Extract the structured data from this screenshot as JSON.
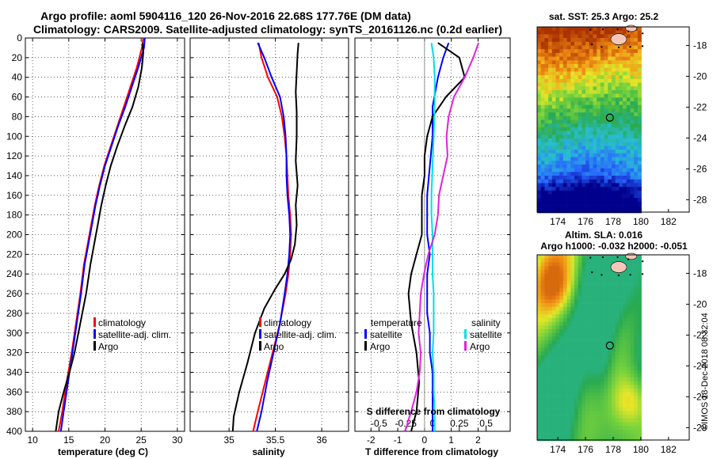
{
  "title_line1": "Argo profile: aoml 5904116_120 26-Nov-2016 22.68S 177.76E (DM data)",
  "title_line2": "Climatology: CARS2009. Satellite-adjusted climatology: synTS_20161126.nc (0.2d earlier)",
  "timestamp": "©IMOS 13-Dec-2018 08:32:04",
  "colors": {
    "clim": "#ff0000",
    "sat": "#0000ff",
    "argo": "#000000",
    "sat_s": "#00e0e0",
    "argo_s": "#e020e0"
  },
  "chart_data": [
    {
      "type": "line",
      "name": "temperature",
      "xlabel": "temperature (deg C)",
      "xlim": [
        9,
        31
      ],
      "ylim": [
        400,
        0
      ],
      "xticks": [
        10,
        15,
        20,
        25,
        30
      ],
      "yticks": [
        0,
        20,
        40,
        60,
        80,
        100,
        120,
        140,
        160,
        180,
        200,
        220,
        240,
        260,
        280,
        300,
        320,
        340,
        360,
        380,
        400
      ],
      "legend": [
        "climatology",
        "satellite-adj. clim.",
        "Argo"
      ],
      "series": [
        {
          "name": "climatology",
          "color": "clim",
          "x": [
            25.3,
            25.1,
            24.4,
            23.5,
            22.6,
            21.7,
            20.8,
            19.9,
            19.2,
            18.6,
            18.1,
            17.6,
            17.1,
            16.6,
            16.0,
            15.4,
            14.7,
            14.1,
            13.6
          ],
          "y": [
            0,
            10,
            30,
            50,
            70,
            90,
            110,
            130,
            150,
            170,
            190,
            210,
            230,
            260,
            290,
            320,
            350,
            380,
            400
          ]
        },
        {
          "name": "satellite-adj. clim.",
          "color": "sat",
          "x": [
            25.5,
            25.4,
            24.6,
            23.7,
            22.8,
            21.8,
            20.9,
            20.0,
            19.3,
            18.7,
            18.2,
            17.7,
            17.2,
            16.7,
            16.1,
            15.5,
            14.9,
            14.3,
            13.9
          ],
          "y": [
            0,
            10,
            30,
            50,
            70,
            90,
            110,
            130,
            150,
            170,
            190,
            210,
            230,
            260,
            290,
            320,
            350,
            380,
            400
          ]
        },
        {
          "name": "Argo",
          "color": "argo",
          "x": [
            25.2,
            25.3,
            25.1,
            24.6,
            23.8,
            22.7,
            21.7,
            20.8,
            20.1,
            19.5,
            19.0,
            18.5,
            18.0,
            17.4,
            16.6,
            15.8,
            15.1,
            14.3,
            13.6,
            13.2
          ],
          "y": [
            5,
            15,
            30,
            50,
            70,
            90,
            110,
            130,
            150,
            170,
            190,
            210,
            230,
            260,
            290,
            320,
            340,
            360,
            380,
            400
          ]
        }
      ]
    },
    {
      "type": "line",
      "name": "salinity",
      "xlabel": "salinity",
      "xlim": [
        34.58,
        36.29
      ],
      "ylim": [
        400,
        0
      ],
      "xticks": [
        35,
        35.5,
        36
      ],
      "legend": [
        "climatology",
        "satellite-adj. clim.",
        "Argo"
      ],
      "series": [
        {
          "name": "climatology",
          "color": "clim",
          "x": [
            35.32,
            35.35,
            35.42,
            35.52,
            35.57,
            35.6,
            35.62,
            35.63,
            35.64,
            35.66,
            35.67,
            35.66,
            35.64,
            35.61,
            35.55,
            35.47,
            35.39,
            35.31,
            35.26
          ],
          "y": [
            5,
            20,
            40,
            60,
            80,
            100,
            120,
            140,
            160,
            180,
            200,
            220,
            240,
            260,
            290,
            320,
            350,
            380,
            400
          ]
        },
        {
          "name": "satellite-adj. clim.",
          "color": "sat",
          "x": [
            35.31,
            35.38,
            35.46,
            35.55,
            35.59,
            35.61,
            35.62,
            35.62,
            35.63,
            35.65,
            35.66,
            35.65,
            35.63,
            35.6,
            35.55,
            35.48,
            35.41,
            35.35,
            35.3
          ],
          "y": [
            5,
            20,
            40,
            60,
            80,
            100,
            120,
            140,
            160,
            180,
            200,
            220,
            240,
            260,
            290,
            320,
            350,
            380,
            400
          ]
        },
        {
          "name": "Argo",
          "color": "argo",
          "x": [
            35.75,
            35.74,
            35.73,
            35.72,
            35.73,
            35.73,
            35.72,
            35.74,
            35.72,
            35.73,
            35.71,
            35.67,
            35.6,
            35.5,
            35.38,
            35.28,
            35.2,
            35.11,
            35.05,
            35.04
          ],
          "y": [
            5,
            15,
            35,
            55,
            75,
            100,
            125,
            150,
            170,
            190,
            210,
            225,
            240,
            255,
            275,
            300,
            330,
            360,
            385,
            400
          ]
        }
      ]
    },
    {
      "type": "line",
      "name": "difference",
      "xlabel": "T difference from climatology",
      "xlim": [
        -2.6,
        3.2
      ],
      "ylim": [
        400,
        0
      ],
      "xticks": [
        -2,
        -1,
        0,
        1,
        2
      ],
      "s_axis_label": "S difference from climatology",
      "s_ticks": [
        {
          "v": -0.5,
          "label": "-0.5"
        },
        {
          "v": -0.25,
          "label": "-0.25"
        },
        {
          "v": 0,
          "label": "0"
        },
        {
          "v": 0.25,
          "label": "0.25"
        },
        {
          "v": 0.5,
          "label": "0.5"
        }
      ],
      "s_xlim": [
        -0.725,
        0.725
      ],
      "legend_temperature_title": "temperature",
      "legend_salinity_title": "salinity",
      "legend_temperature": [
        "satellite",
        "Argo"
      ],
      "legend_salinity": [
        "satellite",
        "Argo"
      ],
      "series": [
        {
          "name": "T satellite",
          "color": "sat",
          "x": [
            0.9,
            0.7,
            0.5,
            0.3,
            0.3,
            0.2,
            0.1,
            0.1,
            0.1,
            0.2,
            0.1,
            0.1,
            0.1,
            0.2,
            0.2,
            0.3,
            0.3,
            0.3,
            0.3
          ],
          "y": [
            5,
            20,
            40,
            70,
            100,
            130,
            160,
            180,
            200,
            220,
            240,
            260,
            280,
            300,
            320,
            340,
            360,
            380,
            400
          ]
        },
        {
          "name": "T Argo",
          "color": "argo",
          "x": [
            0.5,
            1.3,
            1.5,
            0.8,
            0.3,
            0.1,
            0.0,
            0.0,
            -0.1,
            -0.1,
            -0.1,
            -0.3,
            -0.5,
            -0.6,
            -0.5,
            -0.3,
            -0.2,
            -0.3,
            -0.5
          ],
          "y": [
            5,
            20,
            40,
            60,
            80,
            100,
            120,
            140,
            160,
            180,
            200,
            220,
            240,
            260,
            290,
            320,
            350,
            380,
            400
          ]
        },
        {
          "name": "S satellite",
          "color": "sat_s",
          "x": [
            -0.01,
            0.01,
            0.02,
            0.02,
            0.01,
            0.0,
            -0.01,
            -0.01,
            0.0,
            0.0,
            0.0,
            0.01,
            0.01,
            0.01,
            0.0,
            0.01,
            0.01,
            0.02,
            0.02
          ],
          "y": [
            5,
            20,
            40,
            70,
            100,
            130,
            160,
            180,
            200,
            220,
            240,
            260,
            280,
            300,
            320,
            340,
            360,
            380,
            400
          ]
        },
        {
          "name": "S Argo",
          "color": "argo_s",
          "x": [
            0.43,
            0.38,
            0.3,
            0.2,
            0.15,
            0.13,
            0.14,
            0.1,
            0.06,
            0.05,
            0.02,
            -0.04,
            -0.08,
            -0.11,
            -0.12,
            -0.13,
            -0.11,
            -0.12,
            -0.15,
            -0.2,
            -0.23,
            -0.24,
            -0.26
          ],
          "y": [
            5,
            20,
            40,
            60,
            80,
            100,
            120,
            140,
            160,
            180,
            200,
            220,
            240,
            260,
            280,
            300,
            320,
            340,
            360,
            380,
            390,
            395,
            400
          ]
        }
      ]
    },
    {
      "type": "heatmap",
      "name": "sst-map",
      "title": "sat. SST: 25.3 Argo: 25.2",
      "xlim": [
        172.5,
        183.5
      ],
      "ylim": [
        -28.8,
        -16.8
      ],
      "xticks": [
        174,
        176,
        178,
        180,
        182
      ],
      "yticks": [
        -18,
        -20,
        -22,
        -24,
        -26,
        -28
      ],
      "data_extent_lon": [
        172.5,
        180
      ],
      "argo_position": {
        "lon": 177.76,
        "lat": -22.68
      }
    },
    {
      "type": "heatmap",
      "name": "sla-map",
      "title": "Altim. SLA: 0.016",
      "subtitle": "Argo h1000: -0.032 h2000: -0.051",
      "xlim": [
        172.5,
        183.5
      ],
      "ylim": [
        -28.8,
        -16.8
      ],
      "xticks": [
        174,
        176,
        178,
        180,
        182
      ],
      "yticks": [
        -18,
        -20,
        -22,
        -24,
        -26,
        -28
      ],
      "data_extent_lon": [
        172.5,
        180
      ],
      "argo_position": {
        "lon": 177.76,
        "lat": -22.68
      }
    }
  ]
}
